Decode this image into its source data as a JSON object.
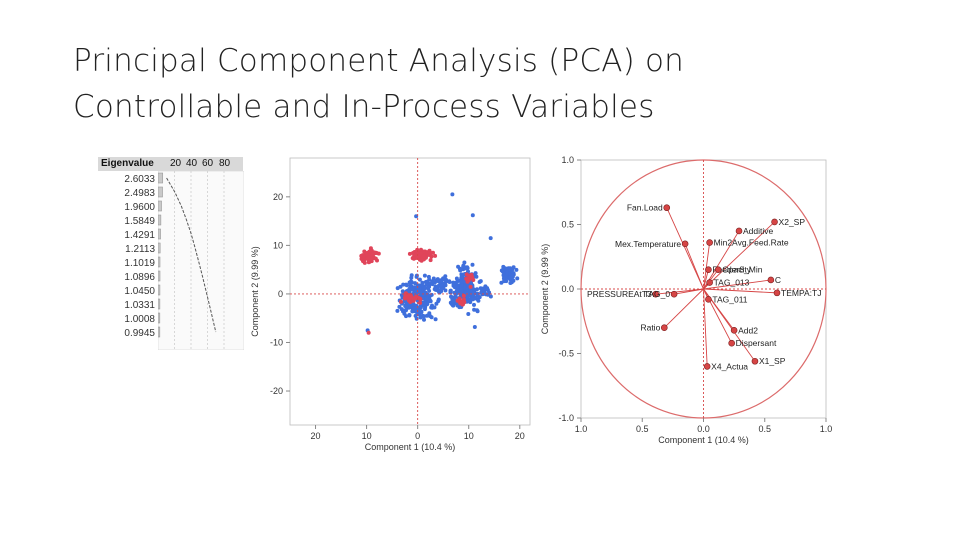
{
  "slide": {
    "title_line1": "Principal Component Analysis (PCA) on",
    "title_line2": "Controllable and In-Process Variables"
  },
  "chart_data": [
    {
      "type": "table",
      "header": "Eigenvalue",
      "bar_axis_ticks": [
        "20",
        "40",
        "60",
        "80"
      ],
      "eigenvalues": [
        "2.6033",
        "2.4983",
        "1.9600",
        "1.5849",
        "1.4291",
        "1.2113",
        "1.1019",
        "1.0896",
        "1.0450",
        "1.0331",
        "1.0008",
        "0.9945"
      ],
      "values": [
        2.6033,
        2.4983,
        1.96,
        1.5849,
        1.4291,
        1.2113,
        1.1019,
        1.0896,
        1.045,
        1.0331,
        1.0008,
        0.9945
      ],
      "bar_percent": [
        10.4,
        10.0,
        7.8,
        6.3,
        5.7,
        4.8,
        4.4,
        4.4,
        4.2,
        4.1,
        4.0,
        4.0
      ],
      "cumulative_percent": [
        10.4,
        20.4,
        28.2,
        34.5,
        40.2,
        45.0,
        49.4,
        53.8,
        58.0,
        62.1,
        66.1,
        70.1
      ]
    },
    {
      "type": "scatter",
      "xlabel": "Component 1  (10.4 %)",
      "ylabel": "Component 2  (9.99 %)",
      "xlim": [
        -25,
        22
      ],
      "ylim": [
        -27,
        28
      ],
      "xticks": [
        -20,
        -10,
        0,
        10,
        20
      ],
      "xtick_labels": [
        "20",
        "10",
        "0",
        "10",
        "20"
      ],
      "yticks": [
        20,
        10,
        0,
        -10,
        -20
      ],
      "ytick_labels": [
        "20",
        "10",
        "0",
        "-10",
        "-20"
      ],
      "colors": {
        "blue": "#3f6fdc",
        "red": "#e0455a",
        "ref_line": "#d84848"
      },
      "clusters": [
        {
          "color": "blue",
          "cx": 0,
          "cy": -1,
          "sx": 2.6,
          "sy": 2.8,
          "n": 230
        },
        {
          "color": "blue",
          "cx": 4.6,
          "cy": 2,
          "sx": 1.3,
          "sy": 1.3,
          "n": 50
        },
        {
          "color": "blue",
          "cx": 9.5,
          "cy": 1.5,
          "sx": 1.7,
          "sy": 3.0,
          "n": 210
        },
        {
          "color": "blue",
          "cx": 17.8,
          "cy": 4,
          "sx": 0.9,
          "sy": 1.1,
          "n": 70
        },
        {
          "color": "blue",
          "cx": 7,
          "cy": -1,
          "sx": 0.6,
          "sy": 1.5,
          "n": 25
        },
        {
          "color": "blue",
          "cx": 12.8,
          "cy": 0.5,
          "sx": 0.9,
          "sy": 1.0,
          "n": 20
        },
        {
          "color": "red",
          "cx": -9.5,
          "cy": 8,
          "sx": 1.0,
          "sy": 0.9,
          "n": 80
        },
        {
          "color": "red",
          "cx": 1,
          "cy": 8,
          "sx": 1.5,
          "sy": 0.7,
          "n": 75
        },
        {
          "color": "red",
          "cx": -1.2,
          "cy": -1,
          "sx": 1.2,
          "sy": 1.0,
          "n": 30
        },
        {
          "color": "red",
          "cx": 8.5,
          "cy": -1.6,
          "sx": 0.7,
          "sy": 0.6,
          "n": 15
        },
        {
          "color": "red",
          "cx": 10,
          "cy": 3,
          "sx": 0.6,
          "sy": 0.8,
          "n": 15
        }
      ],
      "outliers": [
        {
          "x": 6.8,
          "y": 20.5,
          "color": "blue"
        },
        {
          "x": 10.8,
          "y": 16.2,
          "color": "blue"
        },
        {
          "x": -0.3,
          "y": 16,
          "color": "blue"
        },
        {
          "x": 14.3,
          "y": 11.5,
          "color": "blue"
        },
        {
          "x": -9.8,
          "y": -7.5,
          "color": "blue"
        },
        {
          "x": -9.6,
          "y": -8,
          "color": "red"
        },
        {
          "x": 11.2,
          "y": -6.8,
          "color": "blue"
        },
        {
          "x": 19.5,
          "y": 3.2,
          "color": "blue"
        }
      ]
    },
    {
      "type": "scatter",
      "subtype": "loading-plot",
      "xlabel": "Component 1  (10.4 %)",
      "ylabel": "Component 2  (9.99 %)",
      "xlim": [
        -1.0,
        1.0
      ],
      "ylim": [
        -1.0,
        1.0
      ],
      "xticks": [
        -1.0,
        -0.5,
        0.0,
        0.5,
        1.0
      ],
      "xtick_labels": [
        "1.0",
        "0.5",
        "0.0",
        "0.5",
        "1.0"
      ],
      "yticks": [
        1.0,
        0.5,
        0.0,
        -0.5,
        -1.0
      ],
      "ytick_labels": [
        "1.0",
        "0.5",
        "0.0",
        "-0.5",
        "-1.0"
      ],
      "colors": {
        "vector": "#d64545",
        "circle": "#dc6b6b",
        "ref_line": "#d84848"
      },
      "loadings": [
        {
          "label": "Fan.Load",
          "x": -0.3,
          "y": 0.63
        },
        {
          "label": "Additive",
          "x": 0.29,
          "y": 0.45
        },
        {
          "label": "X2_SP",
          "x": 0.58,
          "y": 0.52
        },
        {
          "label": "Mex.Temperature",
          "x": -0.15,
          "y": 0.35
        },
        {
          "label": "Min2Avg.Feed.Rate",
          "x": 0.05,
          "y": 0.36
        },
        {
          "label": "Feeder8_Min",
          "x": 0.04,
          "y": 0.15
        },
        {
          "label": "Opacity",
          "x": 0.12,
          "y": 0.15
        },
        {
          "label": "TAG_013",
          "x": 0.05,
          "y": 0.05
        },
        {
          "label": "PRESSUREAtT3",
          "x": -0.39,
          "y": -0.04
        },
        {
          "label": "TAG_0",
          "x": -0.24,
          "y": -0.04
        },
        {
          "label": "TAG_011",
          "x": 0.04,
          "y": -0.08
        },
        {
          "label": "C",
          "x": 0.55,
          "y": 0.07
        },
        {
          "label": "TEMPA:TJ",
          "x": 0.6,
          "y": -0.03
        },
        {
          "label": "Ratio",
          "x": -0.32,
          "y": -0.3
        },
        {
          "label": "Add2",
          "x": 0.25,
          "y": -0.32
        },
        {
          "label": "Dispersant",
          "x": 0.23,
          "y": -0.42
        },
        {
          "label": "X1_SP",
          "x": 0.42,
          "y": -0.56
        },
        {
          "label": "X4_Actua",
          "x": 0.03,
          "y": -0.6
        }
      ]
    }
  ]
}
